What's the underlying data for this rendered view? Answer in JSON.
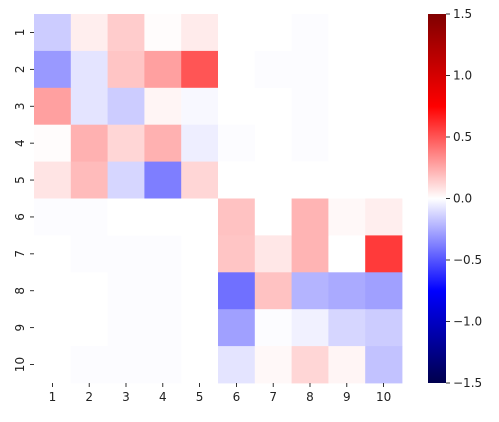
{
  "chart_data": {
    "type": "heatmap",
    "x_labels": [
      "1",
      "2",
      "3",
      "4",
      "5",
      "6",
      "7",
      "8",
      "9",
      "10"
    ],
    "y_labels": [
      "1",
      "2",
      "3",
      "4",
      "5",
      "6",
      "7",
      "8",
      "9",
      "10"
    ],
    "values": [
      [
        -0.15,
        0.05,
        0.15,
        0.01,
        0.06,
        0.0,
        0.0,
        -0.01,
        0.0,
        0.0
      ],
      [
        -0.3,
        -0.08,
        0.17,
        0.28,
        0.5,
        0.0,
        -0.01,
        -0.01,
        0.0,
        0.0
      ],
      [
        0.28,
        -0.08,
        -0.15,
        0.03,
        -0.02,
        0.0,
        0.0,
        -0.01,
        0.0,
        0.0
      ],
      [
        0.01,
        0.23,
        0.12,
        0.23,
        -0.05,
        -0.01,
        0.0,
        -0.01,
        0.0,
        0.0
      ],
      [
        0.08,
        0.2,
        -0.12,
        -0.38,
        0.12,
        0.0,
        0.0,
        0.0,
        0.0,
        0.0
      ],
      [
        -0.01,
        -0.01,
        0.0,
        0.0,
        0.0,
        0.18,
        0.0,
        0.22,
        0.02,
        0.05
      ],
      [
        0.0,
        -0.01,
        -0.01,
        -0.01,
        0.0,
        0.17,
        0.07,
        0.22,
        0.0,
        0.58
      ],
      [
        0.0,
        0.0,
        -0.01,
        -0.01,
        0.0,
        -0.42,
        0.18,
        -0.22,
        -0.25,
        -0.28
      ],
      [
        0.0,
        0.0,
        -0.01,
        -0.01,
        0.0,
        -0.28,
        -0.01,
        -0.04,
        -0.12,
        -0.15
      ],
      [
        0.0,
        -0.01,
        -0.01,
        -0.01,
        0.0,
        -0.08,
        0.02,
        0.12,
        0.03,
        -0.18
      ]
    ],
    "colorbar": {
      "colormap": "seismic",
      "range": [
        -1.5,
        1.5
      ],
      "ticks": [
        1.5,
        1.0,
        0.5,
        0.0,
        -0.5,
        -1.0,
        -1.5
      ],
      "tick_labels": [
        "1.5",
        "1.0",
        "0.5",
        "0.0",
        "−0.5",
        "−1.0",
        "−1.5"
      ]
    }
  }
}
